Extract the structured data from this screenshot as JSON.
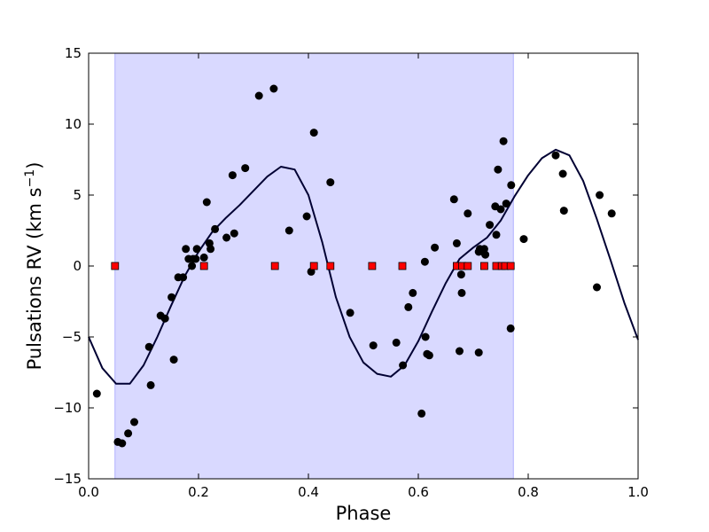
{
  "chart_data": {
    "type": "scatter",
    "xlabel": "Phase",
    "ylabel_main": "Pulsations RV (km s",
    "ylabel_exp": "−1",
    "ylabel_close": ")",
    "xlim": [
      0.0,
      1.0
    ],
    "ylim": [
      -15,
      15
    ],
    "x_ticks": [
      0.0,
      0.2,
      0.4,
      0.6,
      0.8,
      1.0
    ],
    "x_tick_labels": [
      "0.0",
      "0.2",
      "0.4",
      "0.6",
      "0.8",
      "1.0"
    ],
    "y_ticks": [
      -15,
      -10,
      -5,
      0,
      5,
      10,
      15
    ],
    "y_tick_labels": [
      "−15",
      "−10",
      "−5",
      "0",
      "5",
      "10",
      "15"
    ],
    "grid": false,
    "shaded_region": {
      "x_start": 0.048,
      "x_end": 0.773,
      "color": "#d9d9ff",
      "edge_color": "#b0b0ff"
    },
    "series": [
      {
        "kind": "points",
        "marker": "circle",
        "color": "#000000",
        "x": [
          0.015,
          0.053,
          0.061,
          0.072,
          0.083,
          0.11,
          0.113,
          0.131,
          0.139,
          0.151,
          0.155,
          0.163,
          0.172,
          0.177,
          0.182,
          0.188,
          0.19,
          0.195,
          0.197,
          0.21,
          0.215,
          0.22,
          0.222,
          0.23,
          0.251,
          0.262,
          0.265,
          0.285,
          0.31,
          0.337,
          0.365,
          0.397,
          0.405,
          0.41,
          0.44,
          0.476,
          0.518,
          0.56,
          0.572,
          0.582,
          0.59,
          0.606,
          0.612,
          0.613,
          0.616,
          0.62,
          0.63,
          0.665,
          0.67,
          0.675,
          0.678,
          0.679,
          0.69,
          0.71,
          0.71,
          0.712,
          0.718,
          0.72,
          0.722,
          0.73,
          0.74,
          0.742,
          0.745,
          0.75,
          0.755,
          0.76,
          0.768,
          0.769,
          0.792,
          0.85,
          0.863,
          0.865,
          0.925,
          0.93,
          0.952
        ],
        "y": [
          -9.0,
          -12.4,
          -12.5,
          -11.8,
          -11.0,
          -5.7,
          -8.4,
          -3.5,
          -3.7,
          -2.2,
          -6.6,
          -0.8,
          -0.8,
          1.2,
          0.5,
          0.0,
          0.5,
          0.5,
          1.2,
          0.6,
          4.5,
          1.6,
          1.2,
          2.6,
          2.0,
          6.4,
          2.3,
          6.9,
          12.0,
          12.5,
          2.5,
          3.5,
          -0.4,
          9.4,
          5.9,
          -3.3,
          -5.6,
          -5.4,
          -7.0,
          -2.9,
          -1.9,
          -10.4,
          0.3,
          -5.0,
          -6.2,
          -6.3,
          1.3,
          4.7,
          1.6,
          -6.0,
          -0.6,
          -1.9,
          3.7,
          -6.1,
          1.0,
          1.2,
          1.0,
          1.2,
          0.8,
          2.9,
          4.2,
          2.2,
          6.8,
          4.0,
          8.8,
          4.4,
          -4.4,
          5.7,
          1.9,
          7.8,
          6.5,
          3.9,
          -1.5,
          5.0,
          3.7
        ]
      },
      {
        "kind": "points",
        "marker": "square",
        "color": "#ff0000",
        "x": [
          0.048,
          0.21,
          0.339,
          0.41,
          0.44,
          0.516,
          0.571,
          0.67,
          0.68,
          0.69,
          0.72,
          0.742,
          0.752,
          0.758,
          0.768
        ],
        "y": [
          0,
          0,
          0,
          0,
          0,
          0,
          0,
          0,
          0,
          0,
          0,
          0,
          0,
          0,
          0
        ]
      },
      {
        "kind": "line",
        "color": "#000033",
        "x": [
          0.0,
          0.025,
          0.05,
          0.075,
          0.1,
          0.125,
          0.15,
          0.175,
          0.2,
          0.225,
          0.25,
          0.275,
          0.3,
          0.325,
          0.35,
          0.375,
          0.4,
          0.425,
          0.45,
          0.475,
          0.5,
          0.525,
          0.55,
          0.575,
          0.6,
          0.625,
          0.65,
          0.675,
          0.7,
          0.725,
          0.75,
          0.775,
          0.8,
          0.825,
          0.85,
          0.875,
          0.9,
          0.925,
          0.95,
          0.975,
          1.0
        ],
        "y": [
          -5.0,
          -7.2,
          -8.3,
          -8.3,
          -7.0,
          -5.0,
          -2.8,
          -0.7,
          1.0,
          2.4,
          3.4,
          4.3,
          5.3,
          6.3,
          7.0,
          6.8,
          5.0,
          1.7,
          -2.2,
          -5.0,
          -6.8,
          -7.6,
          -7.8,
          -7.0,
          -5.3,
          -3.2,
          -1.2,
          0.5,
          1.3,
          2.0,
          3.2,
          4.9,
          6.4,
          7.6,
          8.2,
          7.8,
          6.0,
          3.3,
          0.4,
          -2.6,
          -5.2
        ]
      }
    ]
  }
}
